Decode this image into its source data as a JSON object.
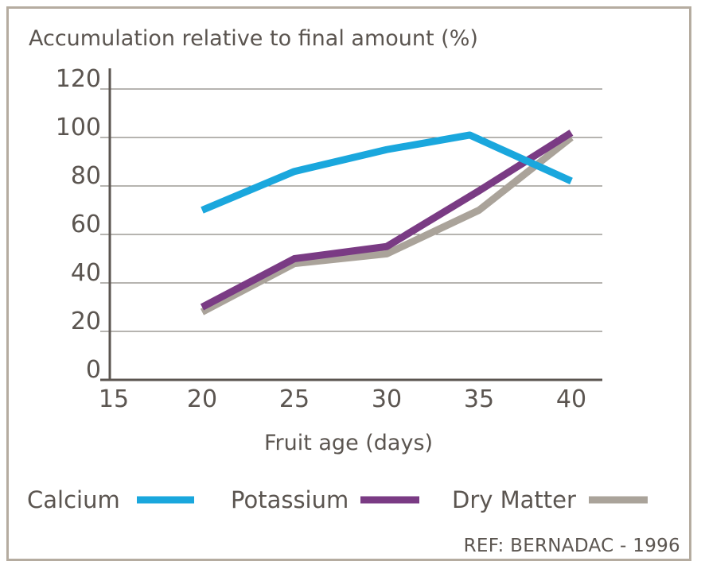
{
  "chart_data": {
    "type": "line",
    "title": "Accumulation relative to final amount (%)",
    "xlabel": "Fruit age (days)",
    "ylabel": "",
    "x_ticks": [
      "15",
      "20",
      "25",
      "30",
      "35",
      "40"
    ],
    "y_ticks": [
      "0",
      "20",
      "40",
      "60",
      "80",
      "100",
      "120"
    ],
    "xlim": [
      15,
      40
    ],
    "ylim": [
      0,
      120
    ],
    "grid": true,
    "legend_position": "bottom",
    "series": [
      {
        "name": "Calcium",
        "color": "#1aa7dd",
        "x": [
          20,
          25,
          30,
          34.5,
          40
        ],
        "y": [
          70,
          86,
          95,
          101,
          82
        ]
      },
      {
        "name": "Potassium",
        "color": "#7a3b84",
        "x": [
          20,
          25,
          30,
          35,
          40
        ],
        "y": [
          30,
          50,
          55,
          78,
          102
        ]
      },
      {
        "name": "Dry Matter",
        "color": "#aaa39a",
        "x": [
          20,
          25,
          30,
          35,
          40
        ],
        "y": [
          28,
          48,
          52,
          70,
          100
        ]
      }
    ],
    "reference": "REF: BERNADAC - 1996"
  }
}
